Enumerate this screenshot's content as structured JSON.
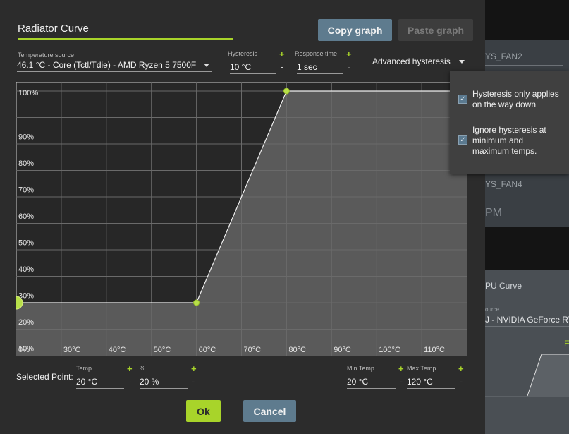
{
  "background_app": {
    "fan2_label": "YS_FAN2",
    "fan4_label": "YS_FAN4",
    "rpm_label": "PM",
    "gpu_curve_title": "PU Curve",
    "gpu_source_label": "ource",
    "gpu_source_value": "J - NVIDIA GeForce RT",
    "accent_text": "E"
  },
  "dialog": {
    "title_value": "Radiator Curve",
    "copy_button": "Copy graph",
    "paste_button": "Paste graph",
    "temp_source": {
      "label": "Temperature source",
      "value": "46.1 °C - Core (Tctl/Tdie) - AMD Ryzen 5 7500F"
    },
    "hysteresis": {
      "label": "Hysteresis",
      "value": "10 °C",
      "plus": "+",
      "minus": "-"
    },
    "response_time": {
      "label": "Response time",
      "value": "1 sec",
      "plus": "+",
      "minus": "-"
    },
    "advanced_hysteresis": "Advanced hysteresis",
    "popover": {
      "opt1": "Hysteresis only applies on the way down",
      "opt2": "Ignore hysteresis at minimum and maximum temps.",
      "opt1_checked": true,
      "opt2_checked": true
    },
    "selected_point": {
      "label": "Selected Point:",
      "temp_label": "Temp",
      "temp_value": "20 °C",
      "percent_label": "%",
      "percent_value": "20 %",
      "min_temp_label": "Min Temp",
      "min_temp_value": "20 °C",
      "max_temp_label": "Max Temp",
      "max_temp_value": "120 °C",
      "plus": "+",
      "minus": "-"
    },
    "ok_button": "Ok",
    "cancel_button": "Cancel"
  },
  "colors": {
    "accent": "#a8d42a",
    "button_blue": "#5e7b8e",
    "dialog_bg": "#2c2c2c"
  },
  "chart_data": {
    "type": "area",
    "x_ticks": [
      "0%",
      "30°C",
      "40°C",
      "50°C",
      "60°C",
      "70°C",
      "80°C",
      "90°C",
      "100°C",
      "110°C"
    ],
    "y_ticks": [
      "10%",
      "20%",
      "30%",
      "40%",
      "50%",
      "60%",
      "70%",
      "80%",
      "90%",
      "100%"
    ],
    "xlim": [
      20,
      120
    ],
    "ylim": [
      0,
      100
    ],
    "grid": true,
    "points": [
      {
        "x": 20,
        "y": 20,
        "selected": true
      },
      {
        "x": 60,
        "y": 20,
        "selected": false
      },
      {
        "x": 80,
        "y": 100,
        "selected": false
      }
    ]
  }
}
